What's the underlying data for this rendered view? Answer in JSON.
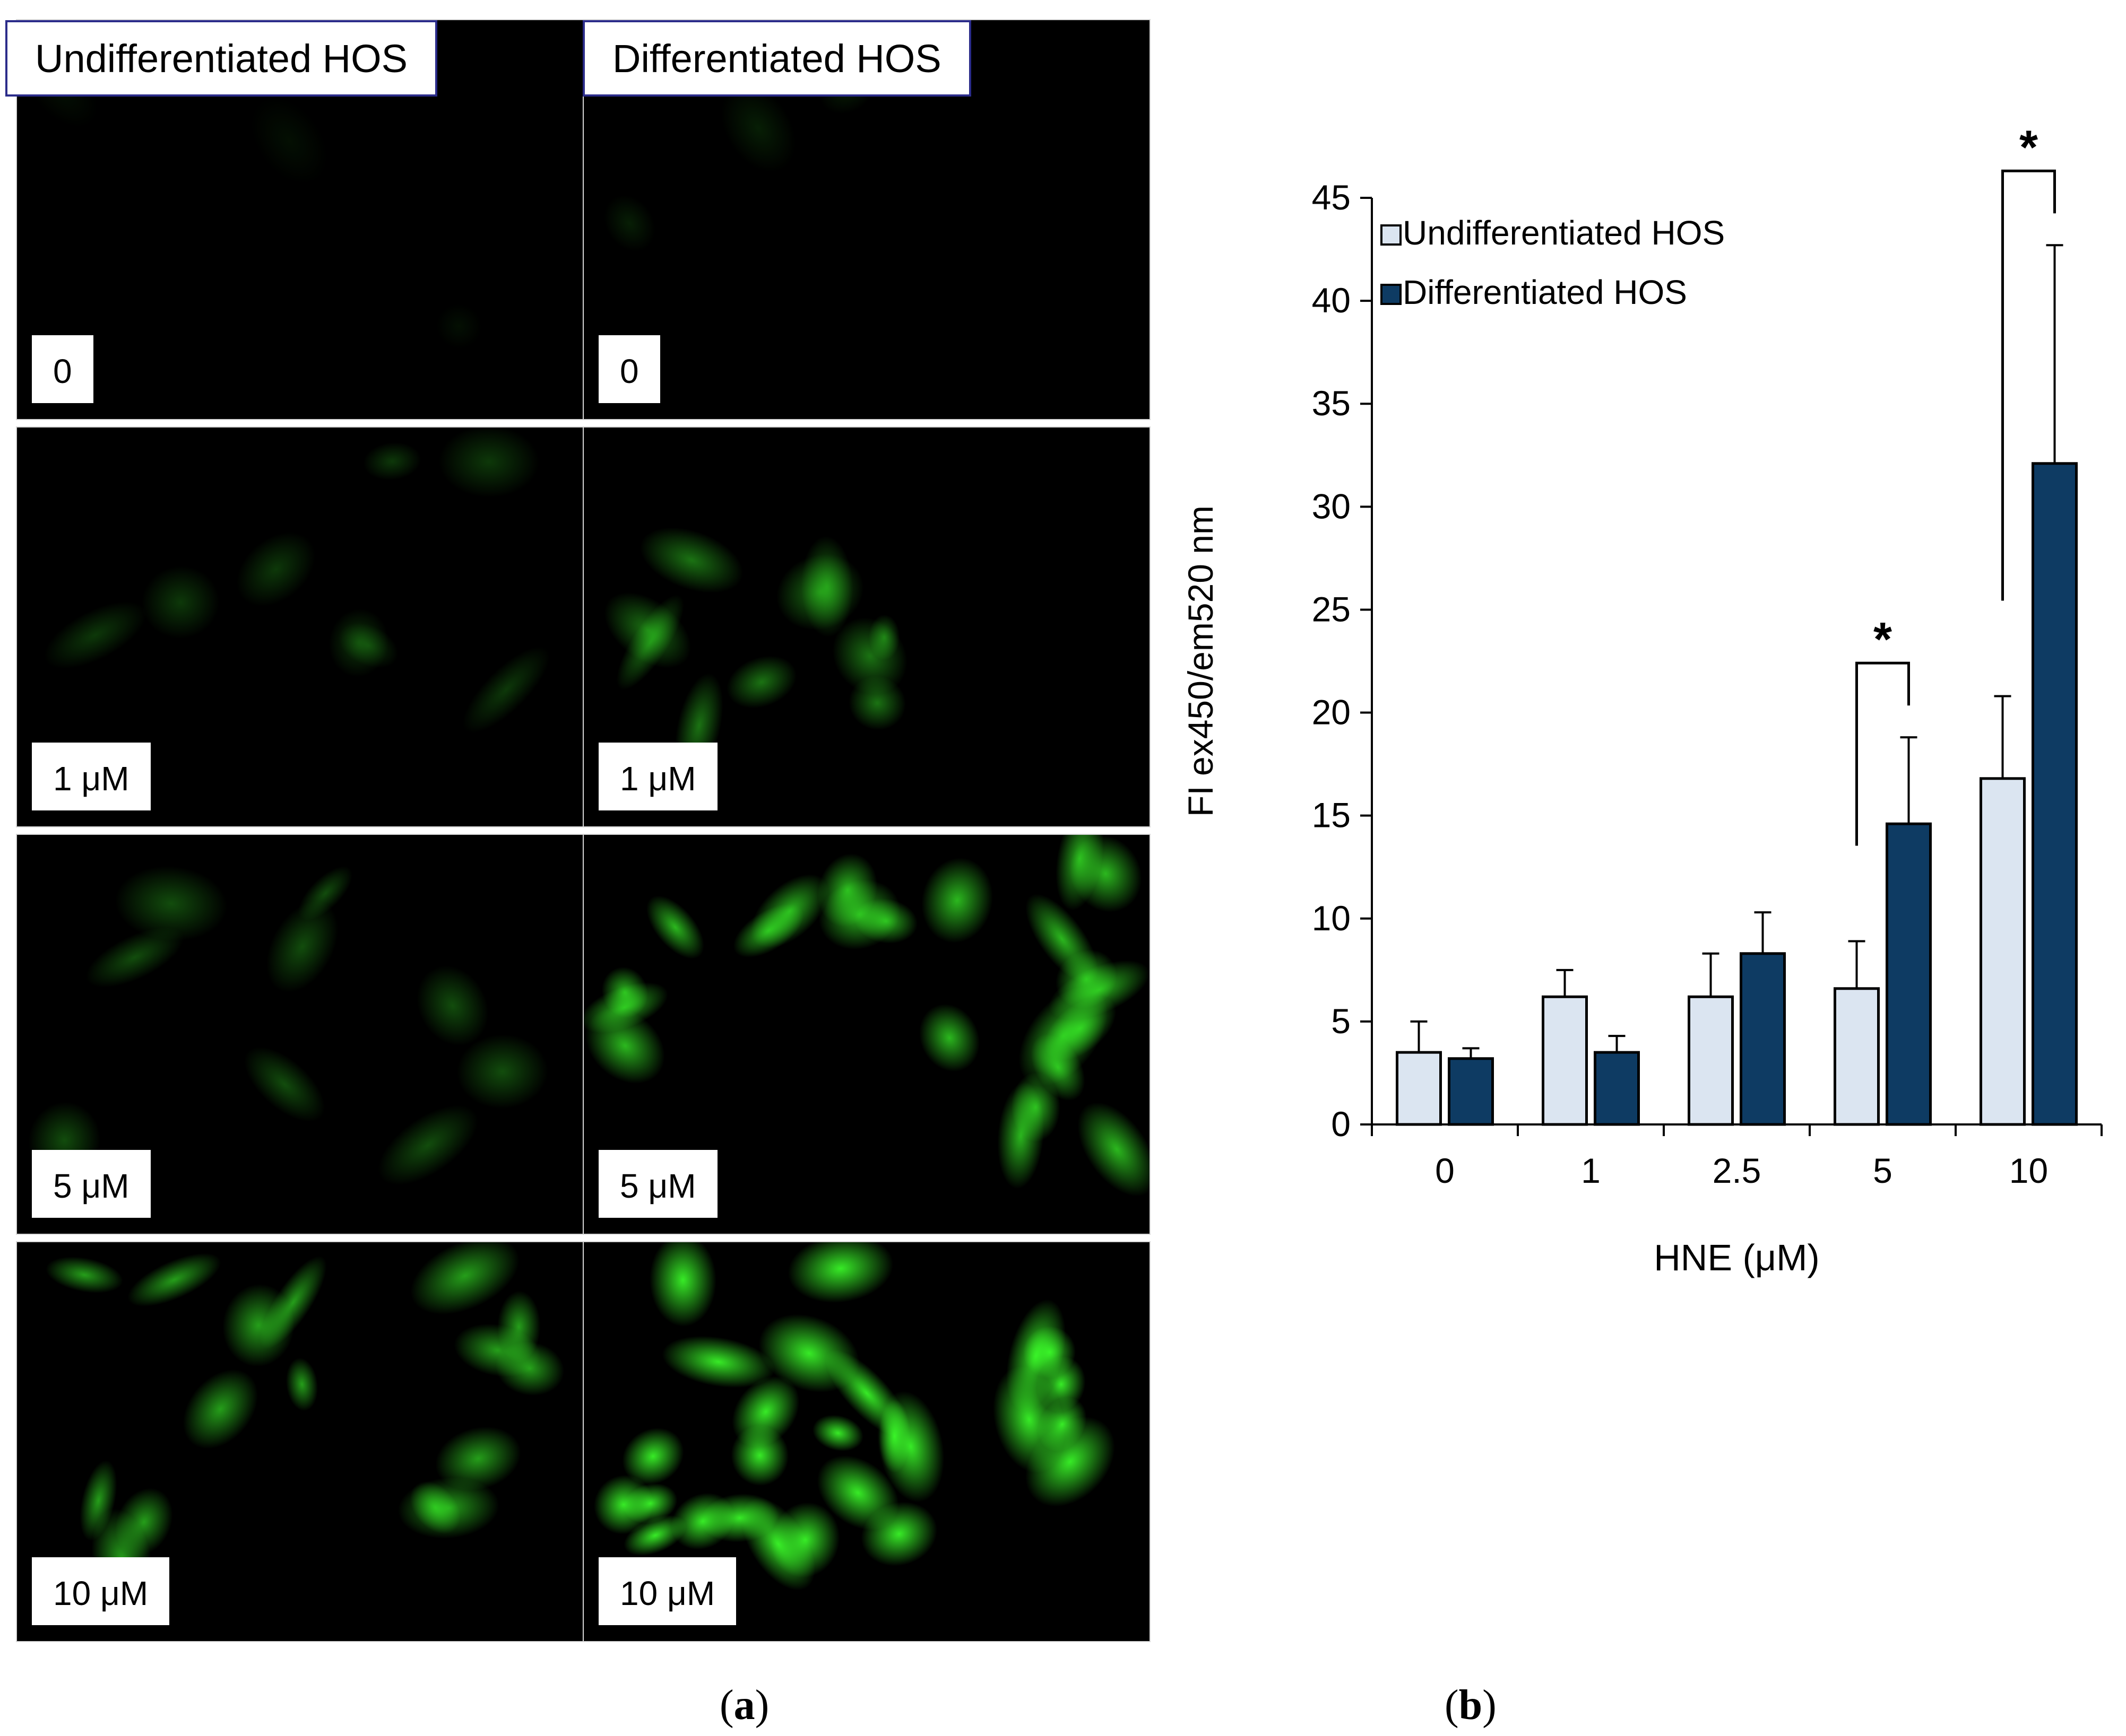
{
  "panel_a": {
    "caption_letter": "a",
    "columns": [
      {
        "header": "Undifferentiated HOS",
        "labels": [
          "0",
          "1 μM",
          "5 μM",
          "10 μM"
        ]
      },
      {
        "header": "Differentiated HOS",
        "labels": [
          "0",
          "1 μM",
          "5 μM",
          "10 μM"
        ]
      }
    ],
    "background_color": "#000000",
    "fluorescence_color": "#3cff2a"
  },
  "panel_b": {
    "caption_letter": "b"
  },
  "chart_data": {
    "type": "bar",
    "categories": [
      "0",
      "1",
      "2.5",
      "5",
      "10"
    ],
    "series": [
      {
        "name": "Undifferentiated HOS",
        "values": [
          3.5,
          6.2,
          6.2,
          6.6,
          16.8
        ],
        "errors": [
          1.5,
          1.3,
          2.1,
          2.3,
          4.0
        ],
        "color": "#dbe5f1"
      },
      {
        "name": "Differentiated HOS",
        "values": [
          3.2,
          3.5,
          8.3,
          14.6,
          32.1
        ],
        "errors": [
          0.5,
          0.8,
          2.0,
          4.2,
          10.6
        ],
        "color": "#0e3b63"
      }
    ],
    "xlabel": "HNE (μM)",
    "ylabel": "FI ex450/em520 nm",
    "ylim": [
      0,
      45
    ],
    "yticks": [
      0,
      5,
      10,
      15,
      20,
      25,
      30,
      35,
      40,
      45
    ],
    "legend_position": "top-left",
    "grid": false,
    "annotations": [
      {
        "text": "*",
        "category": "5",
        "meaning": "significant difference between groups"
      },
      {
        "text": "*",
        "category": "10",
        "meaning": "significant difference between groups"
      }
    ]
  }
}
